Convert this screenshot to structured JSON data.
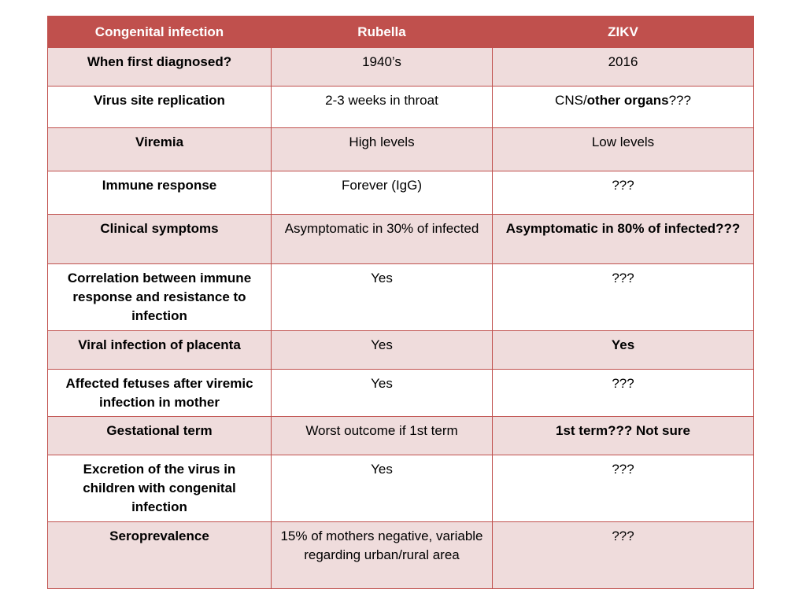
{
  "table": {
    "headers": [
      "Congenital infection",
      "Rubella",
      "ZIKV"
    ],
    "rows": [
      {
        "label": "When first diagnosed?",
        "rubella": "1940’s",
        "zikv": "2016"
      },
      {
        "label": "Virus site replication",
        "rubella": "2-3 weeks in throat",
        "zikv_plain": "CNS/",
        "zikv_bold": "other organs",
        "zikv_tail": "???"
      },
      {
        "label": "Viremia",
        "rubella": "High levels",
        "zikv": "Low levels"
      },
      {
        "label": "Immune response",
        "rubella": "Forever (IgG)",
        "zikv": "???"
      },
      {
        "label": "Clinical symptoms",
        "rubella": "Asymptomatic in 30% of infected",
        "zikv": "Asymptomatic in 80% of infected???"
      },
      {
        "label": "Correlation between immune response and resistance to infection",
        "rubella": "Yes",
        "zikv": "???"
      },
      {
        "label": "Viral infection of placenta",
        "rubella": "Yes",
        "zikv": "Yes"
      },
      {
        "label": "Affected fetuses after viremic infection in mother",
        "rubella": "Yes",
        "zikv": "???"
      },
      {
        "label": "Gestational term",
        "rubella": "Worst outcome if 1st term",
        "zikv": "1st term??? Not sure"
      },
      {
        "label": "Excretion of the virus in children with congenital infection",
        "rubella": "Yes",
        "zikv": "???"
      },
      {
        "label": "Seroprevalence",
        "rubella": "15% of mothers negative, variable regarding urban/rural area",
        "zikv": "???"
      }
    ]
  },
  "colors": {
    "header_bg": "#c0504d",
    "band_bg": "#efdcdc",
    "border": "#c0504d"
  }
}
